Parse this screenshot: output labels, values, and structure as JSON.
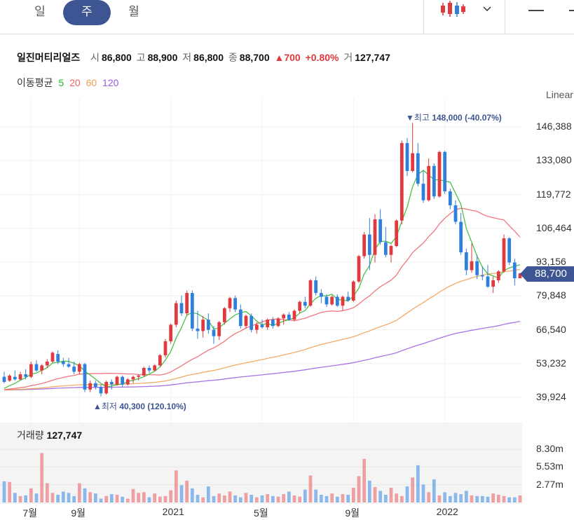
{
  "tabs": {
    "day": "일",
    "week": "주",
    "month": "월",
    "active": "week"
  },
  "stock": {
    "name": "일진머티리얼즈",
    "open_label": "시",
    "open": "86,800",
    "high_label": "고",
    "high": "88,900",
    "low_label": "저",
    "low": "86,800",
    "close_label": "종",
    "close": "88,700",
    "change": "700",
    "change_pct": "+0.80%",
    "volume_label": "거",
    "volume": "127,747"
  },
  "ma_legend": {
    "label": "이동평균",
    "ma5": "5",
    "ma20": "20",
    "ma60": "60",
    "ma120": "120"
  },
  "scale_label": "Linear",
  "current_price": "88,700",
  "high_marker": {
    "label": "최고",
    "value": "148,000",
    "pct": "(-40.07%)"
  },
  "low_marker": {
    "label": "최저",
    "value": "40,300",
    "pct": "(120.10%)"
  },
  "volume_panel": {
    "label": "거래량",
    "value": "127,747"
  },
  "colors": {
    "up": "#e0393e",
    "down": "#2f7fdd",
    "ma5": "#27b727",
    "ma20": "#ee5e6a",
    "ma60": "#f29c4a",
    "ma120": "#9a5ae0",
    "accent": "#3e5593"
  },
  "chart_data": {
    "type": "candlestick",
    "scale": "linear",
    "ylim": [
      37000,
      153000
    ],
    "yticks": [
      "146,388",
      "133,080",
      "119,772",
      "106,464",
      "93,156",
      "79,848",
      "66,540",
      "53,232",
      "39,924"
    ],
    "yticks_values": [
      146388,
      133080,
      119772,
      106464,
      93156,
      79848,
      66540,
      53232,
      39924
    ],
    "xticks": [
      {
        "label": "7월",
        "index": 5
      },
      {
        "label": "9월",
        "index": 14
      },
      {
        "label": "2021",
        "index": 31
      },
      {
        "label": "5월",
        "index": 48
      },
      {
        "label": "9월",
        "index": 65
      },
      {
        "label": "2022",
        "index": 82
      }
    ],
    "candles": [
      [
        48000,
        50000,
        45500,
        46000
      ],
      [
        46500,
        49000,
        46000,
        48500
      ],
      [
        48000,
        50500,
        46500,
        47000
      ],
      [
        47000,
        50000,
        46500,
        49000
      ],
      [
        49000,
        51000,
        47000,
        48000
      ],
      [
        48000,
        54000,
        47500,
        53000
      ],
      [
        53000,
        54500,
        50000,
        50500
      ],
      [
        50500,
        53000,
        49000,
        52500
      ],
      [
        52500,
        55000,
        51500,
        54000
      ],
      [
        54000,
        58000,
        53500,
        57500
      ],
      [
        57000,
        58500,
        53000,
        54000
      ],
      [
        54000,
        55500,
        52000,
        53000
      ],
      [
        53000,
        55500,
        51500,
        52000
      ],
      [
        52000,
        54000,
        49000,
        50000
      ],
      [
        50000,
        53500,
        49000,
        53000
      ],
      [
        53000,
        53500,
        42000,
        43000
      ],
      [
        43000,
        46500,
        42000,
        45500
      ],
      [
        45500,
        46500,
        43000,
        44000
      ],
      [
        44000,
        45000,
        40300,
        41500
      ],
      [
        41500,
        46500,
        41000,
        46000
      ],
      [
        46000,
        47000,
        43000,
        45000
      ],
      [
        45000,
        48500,
        44500,
        48000
      ],
      [
        48000,
        48500,
        44000,
        45000
      ],
      [
        45000,
        47500,
        44500,
        47000
      ],
      [
        47000,
        48500,
        45500,
        48000
      ],
      [
        48000,
        49000,
        46500,
        48500
      ],
      [
        48500,
        52000,
        48000,
        51500
      ],
      [
        51500,
        52500,
        49500,
        50500
      ],
      [
        50500,
        53000,
        50000,
        52500
      ],
      [
        52500,
        57000,
        52000,
        56500
      ],
      [
        56500,
        63000,
        55500,
        62000
      ],
      [
        62000,
        69000,
        61000,
        68500
      ],
      [
        68500,
        78000,
        67500,
        77000
      ],
      [
        77000,
        80000,
        72000,
        73000
      ],
      [
        73000,
        82000,
        72000,
        81000
      ],
      [
        81000,
        82000,
        66000,
        67000
      ],
      [
        67000,
        74000,
        63000,
        66000
      ],
      [
        66000,
        72000,
        63500,
        70500
      ],
      [
        70500,
        73000,
        65000,
        66500
      ],
      [
        66500,
        68000,
        61000,
        64000
      ],
      [
        64000,
        70000,
        62500,
        69500
      ],
      [
        69500,
        75500,
        68500,
        75000
      ],
      [
        75000,
        79500,
        73500,
        79000
      ],
      [
        79000,
        80000,
        73500,
        74500
      ],
      [
        74500,
        76500,
        67000,
        68000
      ],
      [
        68000,
        72500,
        67000,
        72000
      ],
      [
        72000,
        73000,
        65500,
        66500
      ],
      [
        66500,
        69500,
        65000,
        68500
      ],
      [
        68500,
        70500,
        67000,
        67500
      ],
      [
        67500,
        71000,
        66500,
        70500
      ],
      [
        70500,
        71500,
        67000,
        68000
      ],
      [
        68000,
        71500,
        67500,
        71000
      ],
      [
        71000,
        73000,
        68500,
        72500
      ],
      [
        72500,
        73500,
        70000,
        70500
      ],
      [
        70500,
        74500,
        70000,
        74000
      ],
      [
        74000,
        78000,
        73000,
        77500
      ],
      [
        77500,
        79500,
        75000,
        76000
      ],
      [
        76000,
        86500,
        75500,
        86000
      ],
      [
        86000,
        87500,
        80000,
        81000
      ],
      [
        81000,
        82500,
        77000,
        79500
      ],
      [
        79500,
        80500,
        75500,
        76500
      ],
      [
        76500,
        80000,
        76000,
        79500
      ],
      [
        79500,
        80500,
        75500,
        76000
      ],
      [
        76000,
        80000,
        74000,
        79500
      ],
      [
        79500,
        81500,
        77500,
        78000
      ],
      [
        78000,
        86000,
        77500,
        85500
      ],
      [
        85500,
        96000,
        85000,
        95500
      ],
      [
        95500,
        105000,
        94500,
        104000
      ],
      [
        104000,
        110500,
        90000,
        96000
      ],
      [
        96000,
        112000,
        93000,
        110000
      ],
      [
        110000,
        114000,
        100000,
        101000
      ],
      [
        101000,
        107000,
        95000,
        96000
      ],
      [
        96000,
        100000,
        93000,
        99500
      ],
      [
        99500,
        110000,
        99000,
        109500
      ],
      [
        109500,
        141000,
        108000,
        140000
      ],
      [
        140000,
        142000,
        127000,
        129000
      ],
      [
        129000,
        148000,
        128500,
        136000
      ],
      [
        136000,
        140000,
        123000,
        124000
      ],
      [
        124000,
        129000,
        116500,
        117500
      ],
      [
        117500,
        134000,
        117000,
        131000
      ],
      [
        131000,
        132000,
        118000,
        119000
      ],
      [
        119000,
        137000,
        118500,
        136500
      ],
      [
        136500,
        137000,
        120000,
        121000
      ],
      [
        121000,
        122000,
        114000,
        115500
      ],
      [
        115500,
        117500,
        108000,
        109000
      ],
      [
        109000,
        112500,
        96000,
        97000
      ],
      [
        97000,
        98500,
        88000,
        90000
      ],
      [
        90000,
        100500,
        89000,
        93500
      ],
      [
        93500,
        96000,
        86500,
        88000
      ],
      [
        88000,
        91500,
        86000,
        87500
      ],
      [
        87500,
        92000,
        83000,
        83500
      ],
      [
        83500,
        87500,
        81000,
        86000
      ],
      [
        86000,
        90000,
        85000,
        89500
      ],
      [
        89500,
        104000,
        89000,
        102500
      ],
      [
        102500,
        103000,
        92000,
        93000
      ],
      [
        93000,
        94500,
        84000,
        86800
      ],
      [
        86800,
        88900,
        86800,
        88700
      ]
    ],
    "volume_panel_ticks": [
      "8.30m",
      "5.53m",
      "2.77m"
    ],
    "volume_panel_values": [
      8300000,
      5530000,
      2770000
    ],
    "volumes": [
      3300000,
      3200000,
      1500000,
      1000000,
      1100000,
      2200000,
      1400000,
      7700000,
      3000000,
      1500000,
      1200000,
      1700000,
      1500000,
      1000000,
      3000000,
      2200000,
      1600000,
      1400000,
      600000,
      1000000,
      1300000,
      1200000,
      900000,
      600000,
      2100000,
      1500000,
      1600000,
      800000,
      1400000,
      900000,
      1000000,
      1900000,
      5000000,
      2700000,
      3400000,
      2200000,
      1200000,
      800000,
      2500000,
      1000000,
      1400000,
      1100000,
      1700000,
      1100000,
      800000,
      1500000,
      1200000,
      800000,
      1100000,
      1300000,
      1000000,
      900000,
      1300000,
      1700000,
      1100000,
      900000,
      2000000,
      4200000,
      2000000,
      1200000,
      1000000,
      1400000,
      900000,
      1300000,
      1200000,
      2300000,
      4100000,
      6800000,
      3400000,
      2400000,
      1800000,
      1200000,
      2300000,
      1400000,
      1000000,
      2500000,
      3900000,
      5800000,
      2800000,
      1600000,
      3600000,
      1100000,
      1600000,
      1000000,
      1500000,
      1300000,
      1800000,
      1100000,
      1000000,
      1000000,
      900000,
      1400000,
      1200000,
      1000000,
      800000,
      800000,
      1100000
    ]
  }
}
